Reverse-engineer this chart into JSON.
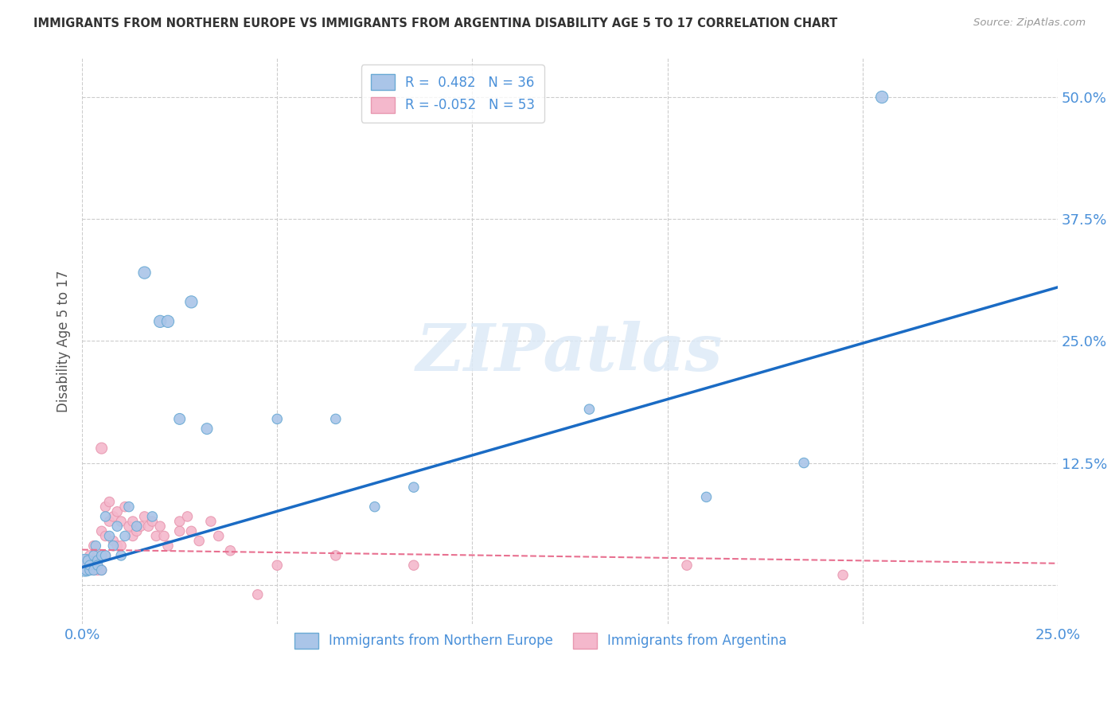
{
  "title": "IMMIGRANTS FROM NORTHERN EUROPE VS IMMIGRANTS FROM ARGENTINA DISABILITY AGE 5 TO 17 CORRELATION CHART",
  "source": "Source: ZipAtlas.com",
  "ylabel": "Disability Age 5 to 17",
  "xlim": [
    0.0,
    0.25
  ],
  "ylim": [
    -0.04,
    0.54
  ],
  "xticks": [
    0.0,
    0.05,
    0.1,
    0.15,
    0.2,
    0.25
  ],
  "xticklabels": [
    "0.0%",
    "",
    "",
    "",
    "",
    "25.0%"
  ],
  "yticks": [
    0.0,
    0.125,
    0.25,
    0.375,
    0.5
  ],
  "yticklabels": [
    "",
    "12.5%",
    "25.0%",
    "37.5%",
    "50.0%"
  ],
  "blue_R": 0.482,
  "blue_N": 36,
  "pink_R": -0.052,
  "pink_N": 53,
  "blue_color": "#aac5e8",
  "blue_edge_color": "#6aaad4",
  "blue_line_color": "#1a6bc4",
  "pink_color": "#f4b8cc",
  "pink_edge_color": "#e898b0",
  "pink_line_color": "#e87090",
  "tick_label_color": "#4a90d9",
  "legend_label_blue": "Immigrants from Northern Europe",
  "legend_label_pink": "Immigrants from Argentina",
  "watermark": "ZIPatlas",
  "background_color": "#ffffff",
  "grid_color": "#cccccc",
  "blue_scatter_x": [
    0.0008,
    0.001,
    0.0015,
    0.002,
    0.002,
    0.003,
    0.003,
    0.0035,
    0.004,
    0.004,
    0.005,
    0.005,
    0.006,
    0.006,
    0.007,
    0.008,
    0.009,
    0.01,
    0.011,
    0.012,
    0.014,
    0.016,
    0.018,
    0.02,
    0.022,
    0.025,
    0.028,
    0.032,
    0.05,
    0.065,
    0.075,
    0.085,
    0.13,
    0.16,
    0.185,
    0.205
  ],
  "blue_scatter_y": [
    0.02,
    0.015,
    0.025,
    0.015,
    0.02,
    0.03,
    0.015,
    0.04,
    0.025,
    0.02,
    0.03,
    0.015,
    0.07,
    0.03,
    0.05,
    0.04,
    0.06,
    0.03,
    0.05,
    0.08,
    0.06,
    0.32,
    0.07,
    0.27,
    0.27,
    0.17,
    0.29,
    0.16,
    0.17,
    0.17,
    0.08,
    0.1,
    0.18,
    0.09,
    0.125,
    0.5
  ],
  "blue_scatter_size": [
    400,
    80,
    80,
    80,
    80,
    80,
    80,
    80,
    80,
    80,
    80,
    80,
    80,
    80,
    80,
    80,
    80,
    80,
    80,
    80,
    80,
    120,
    80,
    120,
    120,
    100,
    120,
    100,
    80,
    80,
    80,
    80,
    80,
    80,
    80,
    120
  ],
  "pink_scatter_x": [
    0.0005,
    0.001,
    0.001,
    0.0015,
    0.002,
    0.002,
    0.003,
    0.003,
    0.003,
    0.004,
    0.004,
    0.004,
    0.005,
    0.005,
    0.005,
    0.006,
    0.006,
    0.006,
    0.007,
    0.007,
    0.008,
    0.008,
    0.009,
    0.009,
    0.01,
    0.01,
    0.011,
    0.012,
    0.013,
    0.013,
    0.014,
    0.015,
    0.016,
    0.017,
    0.018,
    0.019,
    0.02,
    0.021,
    0.022,
    0.025,
    0.025,
    0.027,
    0.028,
    0.03,
    0.033,
    0.035,
    0.038,
    0.045,
    0.05,
    0.065,
    0.085,
    0.155,
    0.195
  ],
  "pink_scatter_y": [
    0.025,
    0.015,
    0.02,
    0.025,
    0.02,
    0.03,
    0.025,
    0.015,
    0.04,
    0.02,
    0.03,
    0.015,
    0.14,
    0.055,
    0.015,
    0.08,
    0.05,
    0.03,
    0.085,
    0.065,
    0.07,
    0.045,
    0.075,
    0.04,
    0.065,
    0.04,
    0.08,
    0.06,
    0.065,
    0.05,
    0.055,
    0.06,
    0.07,
    0.06,
    0.065,
    0.05,
    0.06,
    0.05,
    0.04,
    0.055,
    0.065,
    0.07,
    0.055,
    0.045,
    0.065,
    0.05,
    0.035,
    -0.01,
    0.02,
    0.03,
    0.02,
    0.02,
    0.01
  ],
  "pink_scatter_size": [
    80,
    80,
    80,
    80,
    80,
    80,
    80,
    80,
    80,
    80,
    80,
    80,
    100,
    80,
    80,
    80,
    80,
    80,
    80,
    80,
    80,
    80,
    80,
    80,
    80,
    80,
    80,
    80,
    80,
    80,
    80,
    80,
    80,
    80,
    80,
    80,
    80,
    80,
    80,
    80,
    80,
    80,
    80,
    80,
    80,
    80,
    80,
    80,
    80,
    80,
    80,
    80,
    80
  ],
  "blue_trendline_x": [
    0.0,
    0.25
  ],
  "blue_trendline_y": [
    0.018,
    0.305
  ],
  "pink_trendline_x": [
    0.0,
    0.25
  ],
  "pink_trendline_y": [
    0.036,
    0.022
  ]
}
